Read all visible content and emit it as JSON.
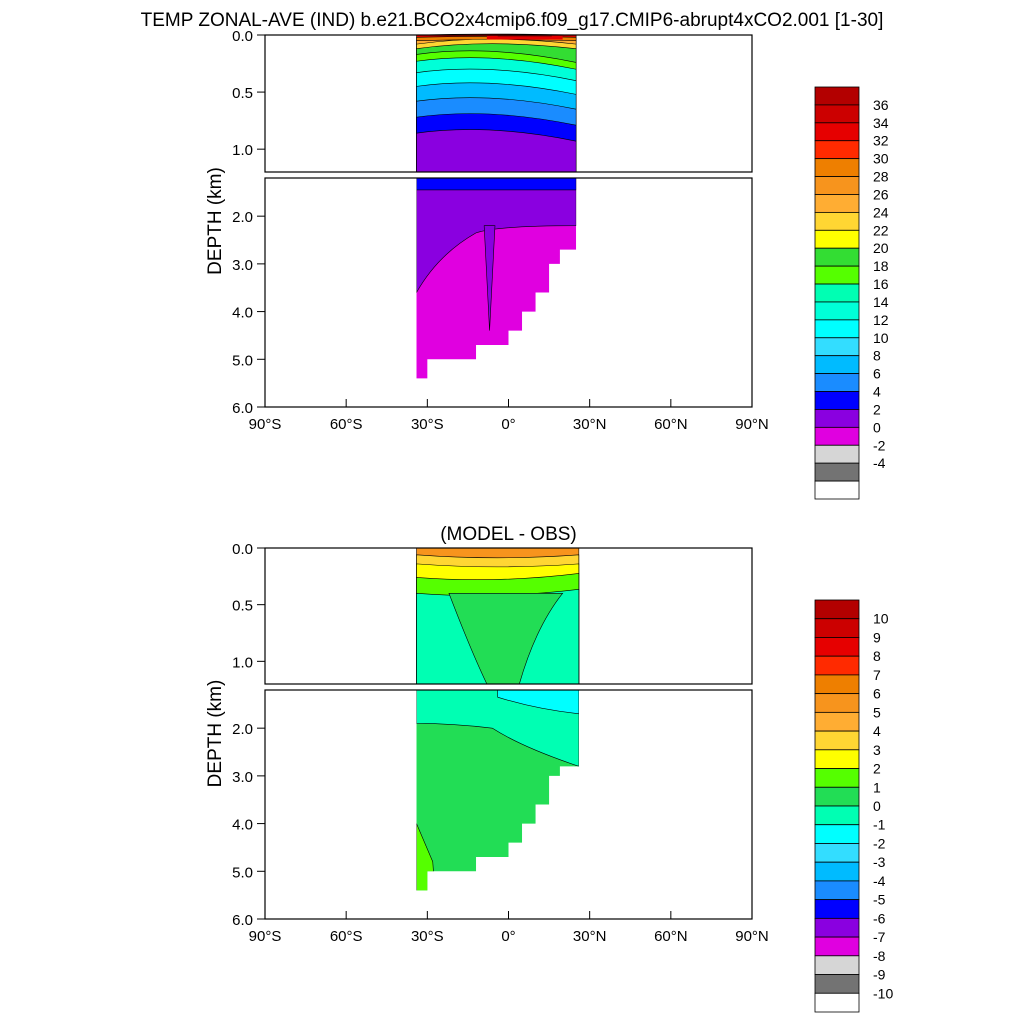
{
  "title": "TEMP ZONAL-AVE (IND) b.e21.BCO2x4cmip6.f09_g17.CMIP6-abrupt4xCO2.001 [1-30]",
  "chart_data": [
    {
      "type": "heatmap",
      "title": "",
      "ylabel": "DEPTH (km)",
      "x_ticks": [
        "90°S",
        "60°S",
        "30°S",
        "0°",
        "30°N",
        "60°N",
        "90°N"
      ],
      "x_range": [
        -90,
        90
      ],
      "y_range_upper": [
        0.0,
        1.2
      ],
      "y_range_lower": [
        1.2,
        6.0
      ],
      "y_ticks_upper": [
        "0.0",
        "0.5",
        "1.0"
      ],
      "y_ticks_lower": [
        "2.0",
        "3.0",
        "4.0",
        "5.0",
        "6.0"
      ],
      "data_lat_range": [
        -34,
        25
      ],
      "colorbar_labels": [
        "36",
        "34",
        "32",
        "30",
        "28",
        "26",
        "24",
        "22",
        "20",
        "18",
        "16",
        "14",
        "12",
        "10",
        "8",
        "6",
        "4",
        "2",
        "0",
        "-2",
        "-4"
      ],
      "colors": [
        "#b30000",
        "#cc0000",
        "#e60000",
        "#ff2a00",
        "#ee7f00",
        "#f7941d",
        "#ffad33",
        "#ffd633",
        "#ffff00",
        "#33dd33",
        "#55ff00",
        "#00ffb3",
        "#00ffd8",
        "#00ffff",
        "#33ddff",
        "#00bbff",
        "#1a8cff",
        "#0000ff",
        "#8a00e0",
        "#e000e0",
        "#d6d6d6",
        "#737373",
        "#ffffff"
      ]
    },
    {
      "type": "heatmap",
      "title": "(MODEL - OBS)",
      "ylabel": "DEPTH (km)",
      "x_ticks": [
        "90°S",
        "60°S",
        "30°S",
        "0°",
        "30°N",
        "60°N",
        "90°N"
      ],
      "x_range": [
        -90,
        90
      ],
      "y_range_upper": [
        0.0,
        1.2
      ],
      "y_range_lower": [
        1.2,
        6.0
      ],
      "y_ticks_upper": [
        "0.0",
        "0.5",
        "1.0"
      ],
      "y_ticks_lower": [
        "2.0",
        "3.0",
        "4.0",
        "5.0",
        "6.0"
      ],
      "data_lat_range": [
        -34,
        26
      ],
      "colorbar_labels": [
        "10",
        "9",
        "8",
        "7",
        "6",
        "5",
        "4",
        "3",
        "2",
        "1",
        "0",
        "-1",
        "-2",
        "-3",
        "-4",
        "-5",
        "-6",
        "-7",
        "-8",
        "-9",
        "-10"
      ],
      "colors": [
        "#b30000",
        "#cc0000",
        "#e60000",
        "#ff2a00",
        "#ee7f00",
        "#f7941d",
        "#ffad33",
        "#ffd633",
        "#ffff00",
        "#55ff00",
        "#22dd55",
        "#00ffb3",
        "#00ffff",
        "#33ddff",
        "#00bbff",
        "#1a8cff",
        "#0000ff",
        "#8a00e0",
        "#e000e0",
        "#d6d6d6",
        "#737373",
        "#ffffff"
      ]
    }
  ]
}
